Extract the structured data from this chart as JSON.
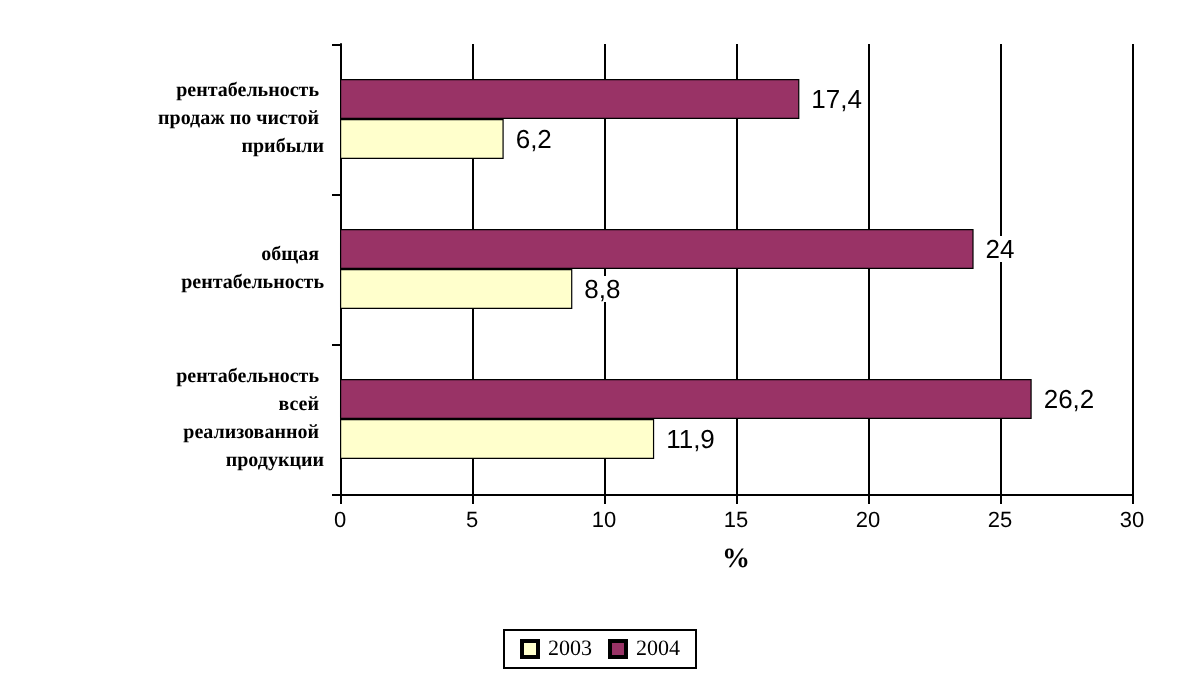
{
  "chart_data": {
    "type": "bar",
    "orientation": "horizontal",
    "xlabel": "%",
    "categories": [
      "рентабельность продаж по чистой прибыли",
      "общая рентабельность",
      "рентабельность всей реализованной продукции"
    ],
    "series": [
      {
        "name": "2003",
        "color": "#ffffcc",
        "values": [
          6.2,
          8.8,
          11.9
        ],
        "value_labels": [
          "6,2",
          "8,8",
          "11,9"
        ]
      },
      {
        "name": "2004",
        "color": "#993366",
        "values": [
          17.4,
          24,
          26.2
        ],
        "value_labels": [
          "17,4",
          "24",
          "26,2"
        ]
      }
    ],
    "xlim": [
      0,
      30
    ],
    "xticks": [
      0,
      5,
      10,
      15,
      20,
      25,
      30
    ],
    "grid": "x",
    "legend": "bottom"
  }
}
